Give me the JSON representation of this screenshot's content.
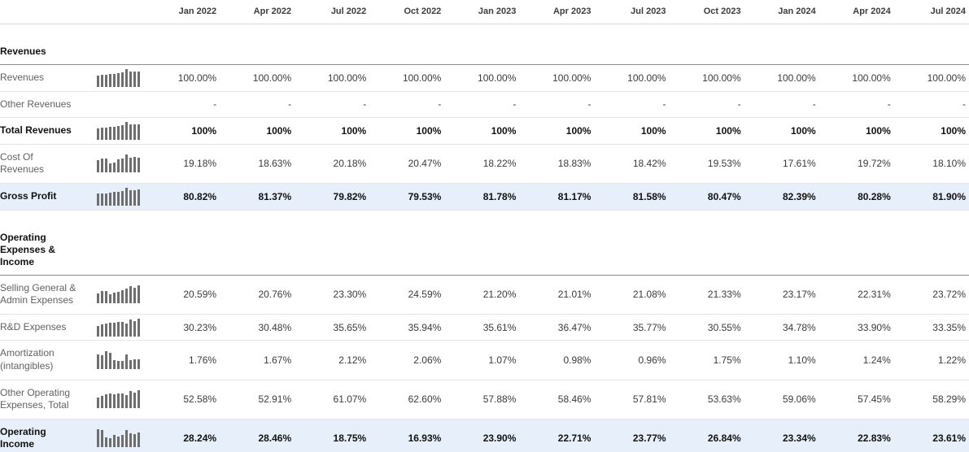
{
  "colors": {
    "highlight_row": "#e7f0fa",
    "sparkline_bar": "#6e6e6e",
    "label_text": "#616161",
    "strong_text": "#111111"
  },
  "table": {
    "columns": [
      "Jan 2022",
      "Apr 2022",
      "Jul 2022",
      "Oct 2022",
      "Jan 2023",
      "Apr 2023",
      "Jul 2023",
      "Oct 2023",
      "Jan 2024",
      "Apr 2024",
      "Jul 2024"
    ],
    "sections": [
      {
        "title_lines": [
          "Revenues"
        ],
        "rows": [
          {
            "id": "revenues",
            "label_lines": [
              "Revenues"
            ],
            "bold": false,
            "highlight": false,
            "spark": [
              0.64,
              0.68,
              0.68,
              0.72,
              0.73,
              0.77,
              0.82,
              1,
              0.86,
              0.86,
              0.87
            ],
            "values": [
              "100.00%",
              "100.00%",
              "100.00%",
              "100.00%",
              "100.00%",
              "100.00%",
              "100.00%",
              "100.00%",
              "100.00%",
              "100.00%",
              "100.00%"
            ]
          },
          {
            "id": "other-revenues",
            "label_lines": [
              "Other Revenues"
            ],
            "bold": false,
            "highlight": false,
            "spark": null,
            "values": [
              "-",
              "-",
              "-",
              "-",
              "-",
              "-",
              "-",
              "-",
              "-",
              "-",
              "-"
            ]
          },
          {
            "id": "total-revenues",
            "label_lines": [
              "Total Revenues"
            ],
            "bold": true,
            "highlight": false,
            "spark": [
              0.64,
              0.68,
              0.68,
              0.72,
              0.73,
              0.77,
              0.82,
              1,
              0.86,
              0.86,
              0.87
            ],
            "values": [
              "100%",
              "100%",
              "100%",
              "100%",
              "100%",
              "100%",
              "100%",
              "100%",
              "100%",
              "100%",
              "100%"
            ]
          },
          {
            "id": "cost-of-revenues",
            "label_lines": [
              "Cost Of",
              "Revenues"
            ],
            "bold": false,
            "highlight": false,
            "spark": [
              0.7,
              0.76,
              0.78,
              0.52,
              0.56,
              0.72,
              0.78,
              1,
              0.82,
              0.88,
              0.84
            ],
            "values": [
              "19.18%",
              "18.63%",
              "20.18%",
              "20.47%",
              "18.22%",
              "18.83%",
              "18.42%",
              "19.53%",
              "17.61%",
              "19.72%",
              "18.10%"
            ]
          },
          {
            "id": "gross-profit",
            "label_lines": [
              "Gross Profit"
            ],
            "bold": true,
            "highlight": true,
            "spark": [
              0.66,
              0.7,
              0.7,
              0.72,
              0.75,
              0.78,
              0.84,
              1,
              0.88,
              0.88,
              0.9
            ],
            "values": [
              "80.82%",
              "81.37%",
              "79.82%",
              "79.53%",
              "81.78%",
              "81.17%",
              "81.58%",
              "80.47%",
              "82.39%",
              "80.28%",
              "81.90%"
            ]
          }
        ]
      },
      {
        "title_lines": [
          "Operating",
          "Expenses &",
          "Income"
        ],
        "rows": [
          {
            "id": "selling-general-admin-expenses",
            "label_lines": [
              "Selling General &",
              "Admin Expenses"
            ],
            "bold": false,
            "highlight": false,
            "spark": [
              0.55,
              0.68,
              0.7,
              0.5,
              0.58,
              0.64,
              0.74,
              0.84,
              0.95,
              0.88,
              1
            ],
            "values": [
              "20.59%",
              "20.76%",
              "23.30%",
              "24.59%",
              "21.20%",
              "21.01%",
              "21.08%",
              "21.33%",
              "23.17%",
              "22.31%",
              "23.72%"
            ]
          },
          {
            "id": "rd-expenses",
            "label_lines": [
              "R&D Expenses"
            ],
            "bold": false,
            "highlight": false,
            "spark": [
              0.6,
              0.66,
              0.72,
              0.75,
              0.78,
              0.82,
              0.82,
              0.72,
              0.94,
              0.88,
              1
            ],
            "values": [
              "30.23%",
              "30.48%",
              "35.65%",
              "35.94%",
              "35.61%",
              "36.47%",
              "35.77%",
              "30.55%",
              "34.78%",
              "33.90%",
              "33.35%"
            ]
          },
          {
            "id": "amortization-intangibles",
            "label_lines": [
              "Amortization",
              "(intangibles)"
            ],
            "bold": false,
            "highlight": false,
            "spark": [
              0.8,
              0.78,
              1,
              0.93,
              0.48,
              0.45,
              0.44,
              0.82,
              0.5,
              0.55,
              0.53
            ],
            "values": [
              "1.76%",
              "1.67%",
              "2.12%",
              "2.06%",
              "1.07%",
              "0.98%",
              "0.96%",
              "1.75%",
              "1.10%",
              "1.24%",
              "1.22%"
            ]
          },
          {
            "id": "other-operating-expenses-total",
            "label_lines": [
              "Other Operating",
              "Expenses, Total"
            ],
            "bold": false,
            "highlight": false,
            "spark": [
              0.6,
              0.66,
              0.76,
              0.8,
              0.78,
              0.82,
              0.82,
              0.72,
              0.94,
              0.88,
              1
            ],
            "values": [
              "52.58%",
              "52.91%",
              "61.07%",
              "62.60%",
              "57.88%",
              "58.46%",
              "57.81%",
              "53.63%",
              "59.06%",
              "57.45%",
              "58.29%"
            ]
          },
          {
            "id": "operating-income",
            "label_lines": [
              "Operating",
              "Income"
            ],
            "bold": true,
            "highlight": true,
            "spark": [
              1,
              0.95,
              0.55,
              0.48,
              0.66,
              0.6,
              0.7,
              0.94,
              0.76,
              0.72,
              0.8
            ],
            "values": [
              "28.24%",
              "28.46%",
              "18.75%",
              "16.93%",
              "23.90%",
              "22.71%",
              "23.77%",
              "26.84%",
              "23.34%",
              "22.83%",
              "23.61%"
            ]
          }
        ]
      }
    ]
  }
}
